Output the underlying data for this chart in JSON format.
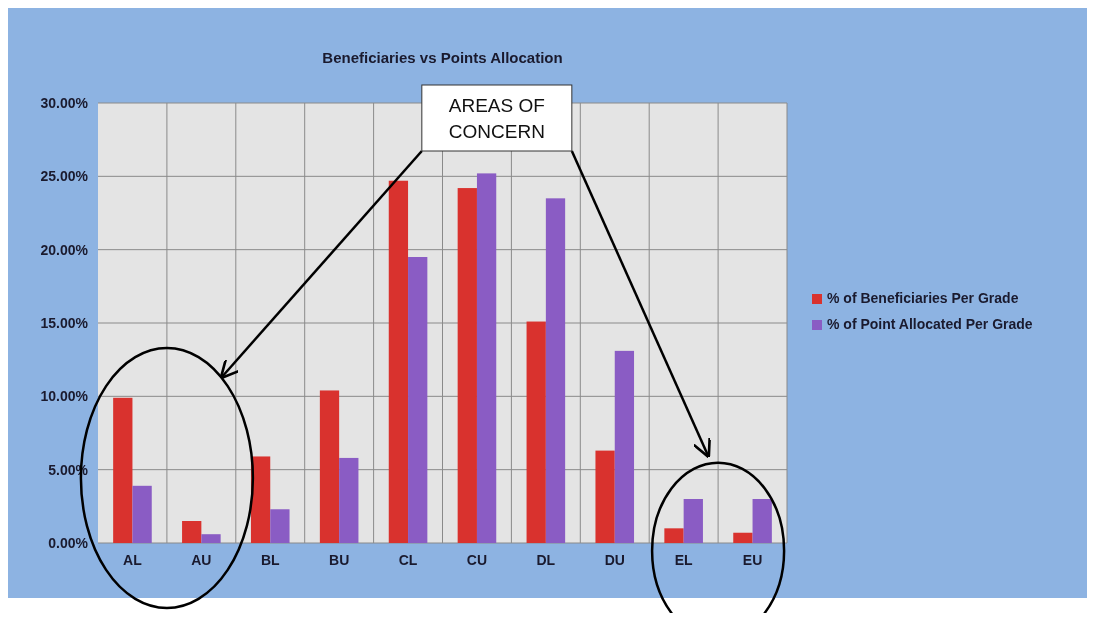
{
  "chart_data": {
    "type": "bar",
    "title": "Beneficiaries vs Points Allocation",
    "categories": [
      "AL",
      "AU",
      "BL",
      "BU",
      "CL",
      "CU",
      "DL",
      "DU",
      "EL",
      "EU"
    ],
    "series": [
      {
        "name": "% of Beneficiaries Per Grade",
        "color": "#d9322e",
        "values": [
          9.9,
          1.5,
          5.9,
          10.4,
          24.7,
          24.2,
          15.1,
          6.3,
          1.0,
          0.7
        ]
      },
      {
        "name": "% of Point Allocated Per Grade",
        "color": "#8a5cc4",
        "values": [
          3.9,
          0.6,
          2.3,
          5.8,
          19.5,
          25.2,
          23.5,
          13.1,
          3.0,
          3.0
        ]
      }
    ],
    "ylim": [
      0,
      30
    ],
    "yticks": [
      {
        "value": 0,
        "label": "0.00%"
      },
      {
        "value": 5,
        "label": "5.00%"
      },
      {
        "value": 10,
        "label": "10.00%"
      },
      {
        "value": 15,
        "label": "15.00%"
      },
      {
        "value": 20,
        "label": "20.00%"
      },
      {
        "value": 25,
        "label": "25.00%"
      },
      {
        "value": 30,
        "label": "30.00%"
      }
    ],
    "grid": true,
    "legend": "right",
    "annotations": [
      "AREAS OF CONCERN"
    ]
  }
}
